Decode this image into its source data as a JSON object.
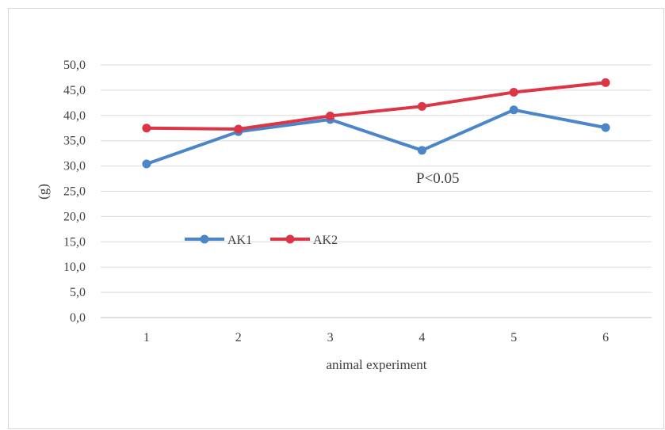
{
  "chart_data": {
    "type": "line",
    "x": [
      "1",
      "2",
      "3",
      "4",
      "5",
      "6"
    ],
    "xlabel": "animal experiment",
    "ylabel": "(g)",
    "ylim": [
      0,
      50
    ],
    "y_ticks": [
      "0,0",
      "5,0",
      "10,0",
      "15,0",
      "20,0",
      "25,0",
      "30,0",
      "35,0",
      "40,0",
      "45,0",
      "50,0"
    ],
    "grid": "horizontal",
    "legend_placement": "inside, lower-left",
    "annotation": "P<0.05",
    "series": [
      {
        "name": "AK1",
        "color": "#4a86c8",
        "values": [
          30.4,
          36.8,
          39.2,
          33.1,
          41.1,
          37.6
        ]
      },
      {
        "name": "AK2",
        "color": "#dc3545",
        "values": [
          37.5,
          37.3,
          39.9,
          41.8,
          44.6,
          46.5
        ]
      }
    ]
  }
}
